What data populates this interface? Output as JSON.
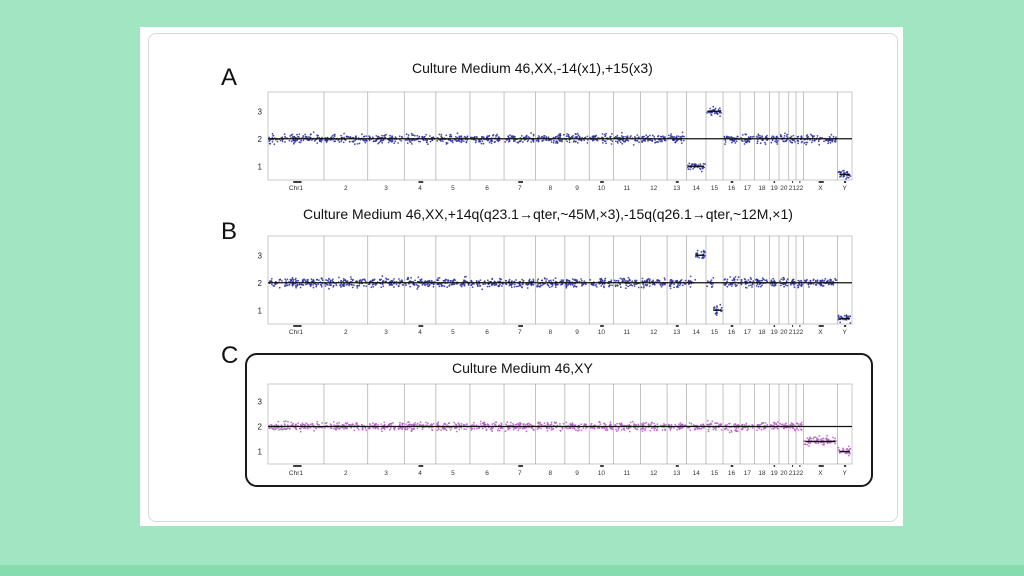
{
  "colors": {
    "background": "#a1e6c3",
    "band": "#86dcae",
    "card": "#ffffff",
    "points_ab": "#2b2f9e",
    "points_c": "#b45ac4",
    "baseline": "#111111",
    "separator": "#9a9a9a"
  },
  "chart_data": [
    {
      "type": "scatter",
      "panel_label": "A",
      "title": "Culture Medium  46,XX,-14(x1),+15(x3)",
      "xlabel": "",
      "ylabel": "",
      "ylim": [
        0.5,
        3.7
      ],
      "yticks": [
        1,
        2,
        3
      ],
      "baseline": 2,
      "point_color": "#2b2f9e",
      "chromosomes": [
        "Chr1",
        "2",
        "3",
        "4",
        "5",
        "6",
        "7",
        "8",
        "9",
        "10",
        "11",
        "12",
        "13",
        "14",
        "15",
        "16",
        "17",
        "18",
        "19",
        "20",
        "21",
        "22",
        "X",
        "Y"
      ],
      "segments": [
        {
          "chromosome": "14",
          "copy_number": 1
        },
        {
          "chromosome": "15",
          "copy_number": 3
        },
        {
          "chromosome": "Y",
          "copy_number": 0.7
        }
      ]
    },
    {
      "type": "scatter",
      "panel_label": "B",
      "title": "Culture Medium 46,XX,+14q(q23.1→qter,~45M,×3),-15q(q26.1→qter,~12M,×1)",
      "xlabel": "",
      "ylabel": "",
      "ylim": [
        0.5,
        3.7
      ],
      "yticks": [
        1,
        2,
        3
      ],
      "baseline": 2,
      "point_color": "#2b2f9e",
      "chromosomes": [
        "Chr1",
        "2",
        "3",
        "4",
        "5",
        "6",
        "7",
        "8",
        "9",
        "10",
        "11",
        "12",
        "13",
        "14",
        "15",
        "16",
        "17",
        "18",
        "19",
        "20",
        "21",
        "22",
        "X",
        "Y"
      ],
      "segments": [
        {
          "chromosome": "14",
          "copy_number": 3,
          "region": "q23.1→qter"
        },
        {
          "chromosome": "15",
          "copy_number": 1,
          "region": "q26.1→qter"
        },
        {
          "chromosome": "Y",
          "copy_number": 0.7
        }
      ]
    },
    {
      "type": "scatter",
      "panel_label": "C",
      "title": "Culture Medium 46,XY",
      "xlabel": "",
      "ylabel": "",
      "ylim": [
        0.5,
        3.7
      ],
      "yticks": [
        1,
        2,
        3
      ],
      "baseline": 2,
      "point_color": "#b45ac4",
      "chromosomes": [
        "Chr1",
        "2",
        "3",
        "4",
        "5",
        "6",
        "7",
        "8",
        "9",
        "10",
        "11",
        "12",
        "13",
        "14",
        "15",
        "16",
        "17",
        "18",
        "19",
        "20",
        "21",
        "22",
        "X",
        "Y"
      ],
      "segments": [
        {
          "chromosome": "X",
          "copy_number": 1.4
        },
        {
          "chromosome": "Y",
          "copy_number": 1.0
        }
      ]
    }
  ]
}
